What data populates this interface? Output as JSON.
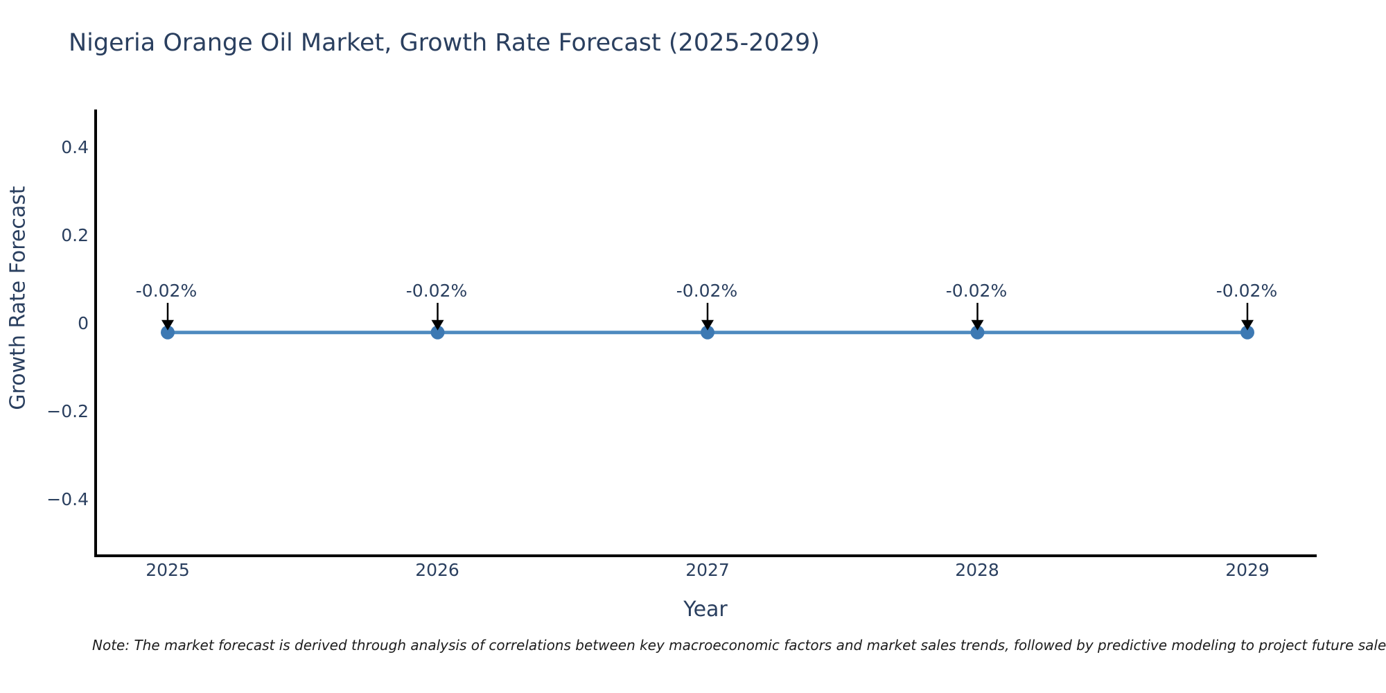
{
  "chart_data": {
    "type": "line",
    "title": "Nigeria Orange Oil Market, Growth Rate Forecast (2025-2029)",
    "xlabel": "Year",
    "ylabel": "Growth Rate Forecast",
    "categories": [
      "2025",
      "2026",
      "2027",
      "2028",
      "2029"
    ],
    "series": [
      {
        "name": "Growth Rate Forecast",
        "values": [
          -0.02,
          -0.02,
          -0.02,
          -0.02,
          -0.02
        ]
      }
    ],
    "point_labels": [
      "-0.02%",
      "-0.02%",
      "-0.02%",
      "-0.02%",
      "-0.02%"
    ],
    "ytick_labels": [
      "0.4",
      "0.2",
      "0",
      "−0.2",
      "−0.4"
    ],
    "yticks": [
      0.4,
      0.2,
      0,
      -0.2,
      -0.4
    ],
    "ylim": [
      -0.53,
      0.49
    ],
    "grid": false,
    "legend": "none",
    "colors": {
      "line": "#4e8abf",
      "marker": "#3d79b3",
      "arrow": "#000000",
      "axis": "#000000",
      "text": "#2a3f5f"
    }
  },
  "note": {
    "text": "Note: The market forecast is derived through analysis of correlations between key macroeconomic factors and market sales trends, followed by predictive modeling to project future sales."
  }
}
